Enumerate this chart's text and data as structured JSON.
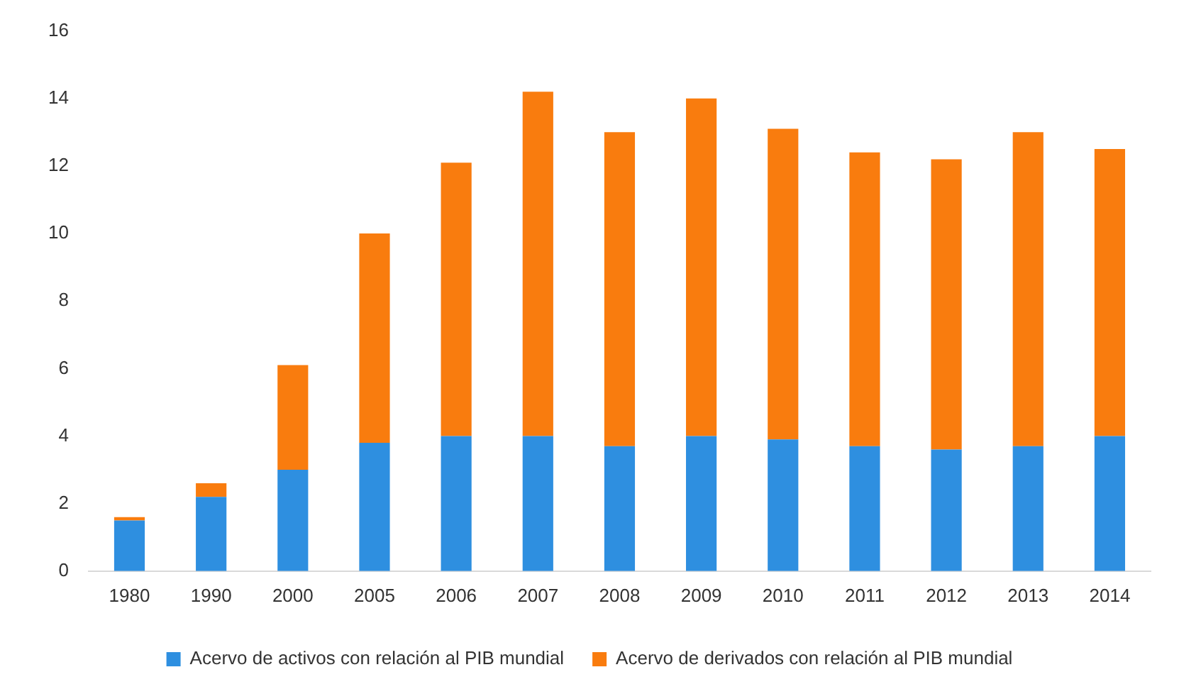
{
  "chart_data": {
    "type": "bar",
    "stacked": true,
    "categories": [
      "1980",
      "1990",
      "2000",
      "2005",
      "2006",
      "2007",
      "2008",
      "2009",
      "2010",
      "2011",
      "2012",
      "2013",
      "2014"
    ],
    "series": [
      {
        "name": "Acervo de activos con relación al PIB mundial",
        "color": "#2e8fe0",
        "values": [
          1.5,
          2.2,
          3.0,
          3.8,
          4.0,
          4.0,
          3.7,
          4.0,
          3.9,
          3.7,
          3.6,
          3.7,
          4.0
        ]
      },
      {
        "name": "Acervo de derivados con relación al PIB mundial",
        "color": "#f97c0e",
        "values": [
          0.1,
          0.4,
          3.1,
          6.2,
          8.1,
          10.2,
          9.3,
          10.0,
          9.2,
          8.7,
          8.6,
          9.3,
          8.5
        ]
      }
    ],
    "ylim": [
      0,
      16
    ],
    "yticks": [
      0,
      2,
      4,
      6,
      8,
      10,
      12,
      14,
      16
    ],
    "grid": false,
    "legend": "bottom"
  }
}
